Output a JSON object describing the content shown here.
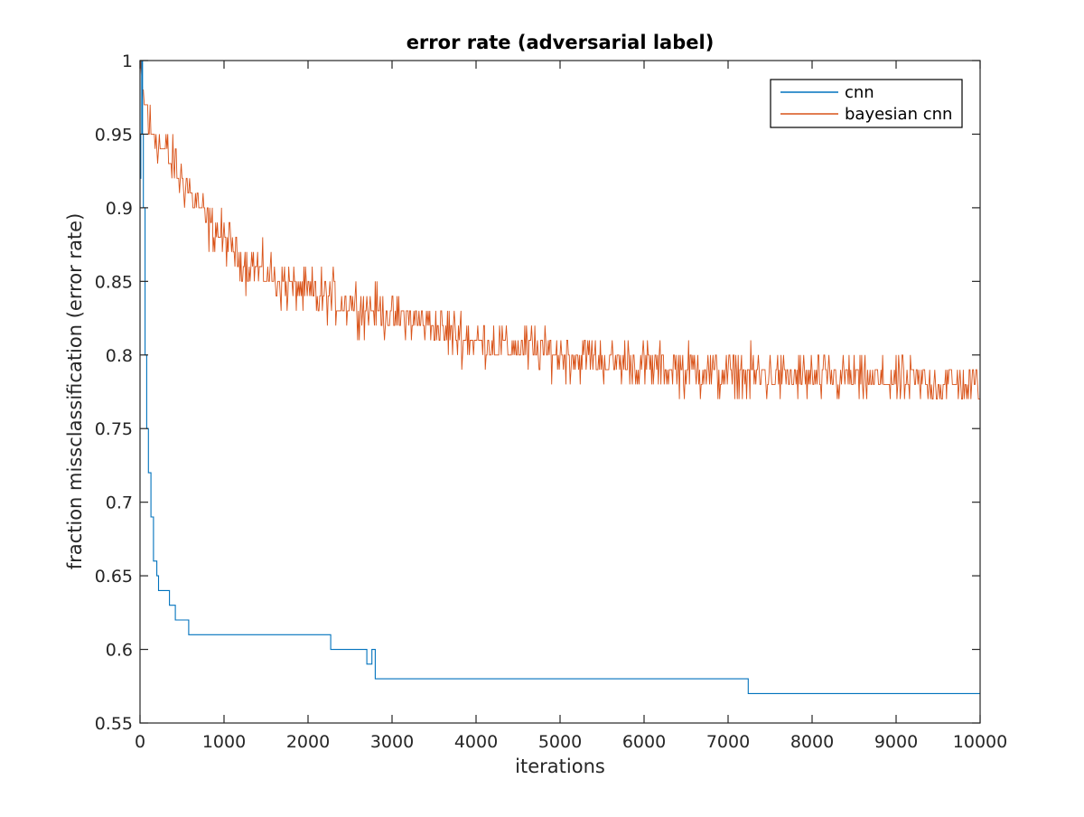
{
  "chart_data": {
    "type": "line",
    "title": "error rate (adversarial label)",
    "xlabel": "iterations",
    "ylabel": "fraction missclassification (error rate)",
    "xlim": [
      0,
      10000
    ],
    "ylim": [
      0.55,
      1
    ],
    "xticks": [
      0,
      1000,
      2000,
      3000,
      4000,
      5000,
      6000,
      7000,
      8000,
      9000,
      10000
    ],
    "xtick_labels": [
      "0",
      "1000",
      "2000",
      "3000",
      "4000",
      "5000",
      "6000",
      "7000",
      "8000",
      "9000",
      "10000"
    ],
    "yticks": [
      0.55,
      0.6,
      0.65,
      0.7,
      0.75,
      0.8,
      0.85,
      0.9,
      0.95,
      1
    ],
    "ytick_labels": [
      "0.55",
      "0.6",
      "0.65",
      "0.7",
      "0.75",
      "0.8",
      "0.85",
      "0.9",
      "0.95",
      "1"
    ],
    "grid": false,
    "legend_position": "top-right",
    "series": [
      {
        "name": "cnn",
        "color": "#0072bd",
        "style": "step",
        "points": [
          [
            0,
            0.92
          ],
          [
            10,
            0.95
          ],
          [
            20,
            1.0
          ],
          [
            30,
            0.95
          ],
          [
            40,
            0.9
          ],
          [
            60,
            0.8
          ],
          [
            80,
            0.75
          ],
          [
            100,
            0.72
          ],
          [
            130,
            0.69
          ],
          [
            160,
            0.66
          ],
          [
            200,
            0.65
          ],
          [
            220,
            0.64
          ],
          [
            350,
            0.63
          ],
          [
            420,
            0.62
          ],
          [
            580,
            0.61
          ],
          [
            2270,
            0.6
          ],
          [
            2700,
            0.59
          ],
          [
            2760,
            0.6
          ],
          [
            2800,
            0.58
          ],
          [
            7240,
            0.57
          ],
          [
            10000,
            0.57
          ]
        ]
      },
      {
        "name": "bayesian cnn",
        "color": "#d95319",
        "style": "noisy-line",
        "trend": [
          [
            0,
            0.99
          ],
          [
            50,
            0.97
          ],
          [
            150,
            0.95
          ],
          [
            400,
            0.93
          ],
          [
            800,
            0.89
          ],
          [
            1200,
            0.865
          ],
          [
            1600,
            0.85
          ],
          [
            2000,
            0.843
          ],
          [
            2500,
            0.835
          ],
          [
            3000,
            0.826
          ],
          [
            3500,
            0.82
          ],
          [
            4000,
            0.81
          ],
          [
            5000,
            0.8
          ],
          [
            6000,
            0.793
          ],
          [
            7000,
            0.787
          ],
          [
            8000,
            0.785
          ],
          [
            9000,
            0.782
          ],
          [
            10000,
            0.779
          ]
        ],
        "noise_amplitude": 0.012,
        "samples": 1000
      }
    ]
  }
}
